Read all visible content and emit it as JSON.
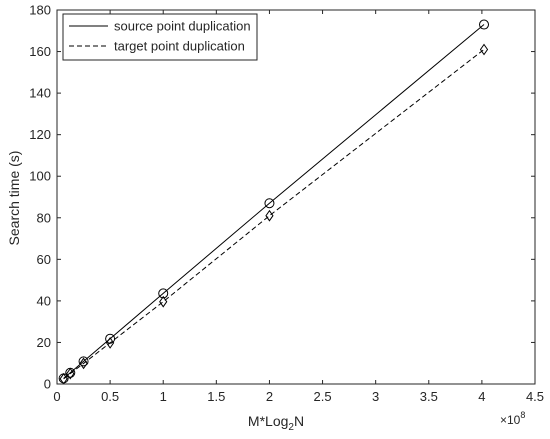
{
  "chart_data": {
    "type": "line",
    "title": "",
    "xlabel": "M*Log2N",
    "xlabel_main": "M*Log",
    "xlabel_sub": "2",
    "xlabel_tail": "N",
    "ylabel": "Search time (s)",
    "x_multiplier": "×10",
    "x_multiplier_exp": "8",
    "xlim": [
      0,
      4.5
    ],
    "ylim": [
      0,
      180
    ],
    "xticks": [
      0,
      0.5,
      1,
      1.5,
      2,
      2.5,
      3,
      3.5,
      4,
      4.5
    ],
    "xtick_labels": [
      "0",
      "0.5",
      "1",
      "1.5",
      "2",
      "2.5",
      "3",
      "3.5",
      "4",
      "4.5"
    ],
    "yticks": [
      0,
      20,
      40,
      60,
      80,
      100,
      120,
      140,
      160,
      180
    ],
    "ytick_labels": [
      "0",
      "20",
      "40",
      "60",
      "80",
      "100",
      "120",
      "140",
      "160",
      "180"
    ],
    "grid": false,
    "legend_position": "top-left",
    "series": [
      {
        "name": "source point duplication",
        "line_style": "solid",
        "marker": "circle",
        "color": "#000000",
        "x": [
          0.0625,
          0.125,
          0.25,
          0.5,
          1.0,
          2.0,
          4.02
        ],
        "y": [
          2.7,
          5.4,
          10.9,
          21.8,
          43.6,
          87.0,
          173.0
        ]
      },
      {
        "name": "target point duplication",
        "line_style": "dashed",
        "marker": "diamond",
        "color": "#000000",
        "x": [
          0.0625,
          0.125,
          0.25,
          0.5,
          1.0,
          2.0,
          4.02
        ],
        "y": [
          2.5,
          5.0,
          9.9,
          19.8,
          39.6,
          81.0,
          161.0
        ]
      }
    ]
  }
}
